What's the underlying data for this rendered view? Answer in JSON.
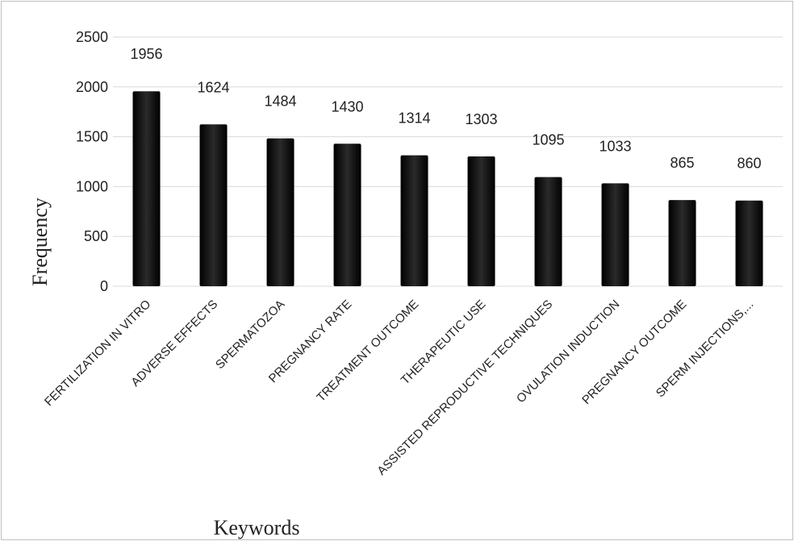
{
  "chart_data": {
    "type": "bar",
    "categories": [
      "FERTILIZATION IN VITRO",
      "ADVERSE EFFECTS",
      "SPERMATOZOA",
      "PREGNANCY RATE",
      "TREATMENT OUTCOME",
      "THERAPEUTIC USE",
      "ASSISTED REPRODUCTIVE TECHNIQUES",
      "OVULATION INDUCTION",
      "PREGNANCY OUTCOME",
      "SPERM INJECTIONS,..."
    ],
    "values": [
      1956,
      1624,
      1484,
      1430,
      1314,
      1303,
      1095,
      1033,
      865,
      860
    ],
    "xlabel": "Keywords",
    "ylabel": "Frequency",
    "ylim": [
      0,
      2500
    ],
    "yticks": [
      0,
      500,
      1000,
      1500,
      2000,
      2500
    ],
    "grid": true,
    "legend": "none",
    "bar_color": "#111111",
    "grid_color": "#d9d9d9"
  }
}
